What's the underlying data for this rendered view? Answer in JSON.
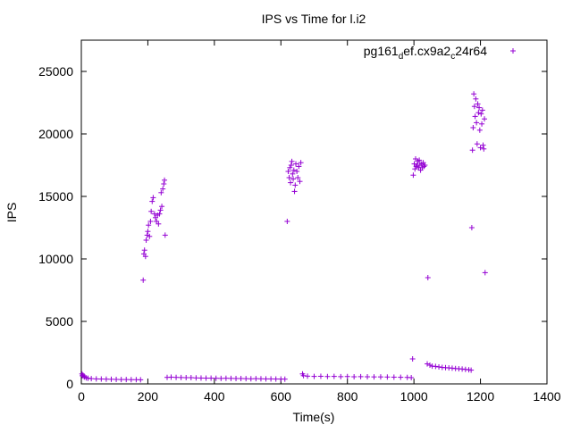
{
  "chart_data": {
    "type": "scatter",
    "title": "IPS vs Time for l.i2",
    "xlabel": "Time(s)",
    "ylabel": "IPS",
    "xlim": [
      0,
      1400
    ],
    "ylim": [
      0,
      27500
    ],
    "x_ticks": [
      0,
      200,
      400,
      600,
      800,
      1000,
      1200,
      1400
    ],
    "y_ticks": [
      0,
      5000,
      10000,
      15000,
      20000,
      25000
    ],
    "x_tick_labels": [
      "0",
      "200",
      "400",
      "600",
      "800",
      "1000",
      "1200",
      "1400"
    ],
    "y_tick_labels": [
      "0",
      "5000",
      "10000",
      "15000",
      "20000",
      "25000"
    ],
    "grid": false,
    "legend_position": "top-right",
    "marker": "+",
    "series": [
      {
        "name": "pg161_def.cx9a2_c24r64",
        "legend_parts": [
          "pg161",
          "d",
          "ef.cx9a2",
          "c",
          "24r64"
        ],
        "color": "#9400d3",
        "points": [
          [
            2,
            800
          ],
          [
            3,
            650
          ],
          [
            5,
            700
          ],
          [
            8,
            600
          ],
          [
            10,
            550
          ],
          [
            15,
            480
          ],
          [
            20,
            450
          ],
          [
            30,
            420
          ],
          [
            45,
            400
          ],
          [
            60,
            390
          ],
          [
            75,
            380
          ],
          [
            90,
            370
          ],
          [
            105,
            360
          ],
          [
            120,
            350
          ],
          [
            135,
            350
          ],
          [
            150,
            340
          ],
          [
            165,
            340
          ],
          [
            178,
            330
          ],
          [
            186,
            8300
          ],
          [
            188,
            10400
          ],
          [
            190,
            10700
          ],
          [
            193,
            10200
          ],
          [
            195,
            11500
          ],
          [
            198,
            11900
          ],
          [
            200,
            12200
          ],
          [
            202,
            12700
          ],
          [
            205,
            11800
          ],
          [
            208,
            13000
          ],
          [
            210,
            13800
          ],
          [
            213,
            14600
          ],
          [
            216,
            14900
          ],
          [
            220,
            13600
          ],
          [
            223,
            13300
          ],
          [
            226,
            13000
          ],
          [
            229,
            13500
          ],
          [
            232,
            12800
          ],
          [
            235,
            13600
          ],
          [
            238,
            13900
          ],
          [
            240,
            15300
          ],
          [
            242,
            14200
          ],
          [
            245,
            15600
          ],
          [
            248,
            16000
          ],
          [
            250,
            16300
          ],
          [
            252,
            11900
          ],
          [
            258,
            520
          ],
          [
            270,
            540
          ],
          [
            285,
            520
          ],
          [
            300,
            510
          ],
          [
            315,
            500
          ],
          [
            330,
            500
          ],
          [
            345,
            480
          ],
          [
            360,
            470
          ],
          [
            375,
            460
          ],
          [
            390,
            460
          ],
          [
            405,
            450
          ],
          [
            420,
            440
          ],
          [
            435,
            450
          ],
          [
            450,
            440
          ],
          [
            465,
            430
          ],
          [
            480,
            430
          ],
          [
            495,
            420
          ],
          [
            510,
            410
          ],
          [
            525,
            420
          ],
          [
            540,
            410
          ],
          [
            555,
            400
          ],
          [
            570,
            400
          ],
          [
            585,
            390
          ],
          [
            600,
            390
          ],
          [
            612,
            380
          ],
          [
            619,
            13000
          ],
          [
            622,
            17000
          ],
          [
            625,
            16500
          ],
          [
            627,
            17300
          ],
          [
            629,
            16100
          ],
          [
            631,
            17500
          ],
          [
            633,
            17800
          ],
          [
            635,
            16800
          ],
          [
            637,
            16400
          ],
          [
            639,
            17100
          ],
          [
            641,
            15400
          ],
          [
            643,
            15900
          ],
          [
            645,
            17600
          ],
          [
            648,
            17000
          ],
          [
            651,
            16500
          ],
          [
            654,
            17400
          ],
          [
            657,
            16200
          ],
          [
            660,
            17700
          ],
          [
            665,
            800
          ],
          [
            668,
            660
          ],
          [
            680,
            620
          ],
          [
            700,
            600
          ],
          [
            720,
            610
          ],
          [
            740,
            590
          ],
          [
            760,
            600
          ],
          [
            780,
            580
          ],
          [
            800,
            590
          ],
          [
            820,
            570
          ],
          [
            840,
            580
          ],
          [
            860,
            570
          ],
          [
            880,
            560
          ],
          [
            900,
            560
          ],
          [
            920,
            550
          ],
          [
            940,
            540
          ],
          [
            960,
            530
          ],
          [
            980,
            520
          ],
          [
            992,
            500
          ],
          [
            996,
            2000
          ],
          [
            998,
            16700
          ],
          [
            1001,
            17600
          ],
          [
            1003,
            17200
          ],
          [
            1005,
            18000
          ],
          [
            1007,
            17400
          ],
          [
            1010,
            17500
          ],
          [
            1012,
            17800
          ],
          [
            1014,
            17300
          ],
          [
            1016,
            17900
          ],
          [
            1018,
            17500
          ],
          [
            1020,
            17100
          ],
          [
            1023,
            17600
          ],
          [
            1025,
            17300
          ],
          [
            1028,
            17700
          ],
          [
            1030,
            17400
          ],
          [
            1033,
            17500
          ],
          [
            1042,
            8500
          ],
          [
            1040,
            1600
          ],
          [
            1048,
            1500
          ],
          [
            1055,
            1420
          ],
          [
            1065,
            1400
          ],
          [
            1075,
            1360
          ],
          [
            1085,
            1320
          ],
          [
            1095,
            1300
          ],
          [
            1105,
            1280
          ],
          [
            1115,
            1260
          ],
          [
            1125,
            1230
          ],
          [
            1135,
            1210
          ],
          [
            1145,
            1190
          ],
          [
            1155,
            1160
          ],
          [
            1165,
            1130
          ],
          [
            1172,
            1100
          ],
          [
            1174,
            12500
          ],
          [
            1176,
            18700
          ],
          [
            1178,
            20500
          ],
          [
            1180,
            23200
          ],
          [
            1182,
            22200
          ],
          [
            1184,
            21400
          ],
          [
            1186,
            22800
          ],
          [
            1188,
            20900
          ],
          [
            1190,
            19200
          ],
          [
            1192,
            22400
          ],
          [
            1194,
            21700
          ],
          [
            1196,
            22100
          ],
          [
            1198,
            20300
          ],
          [
            1200,
            18900
          ],
          [
            1202,
            21600
          ],
          [
            1204,
            20800
          ],
          [
            1206,
            21900
          ],
          [
            1208,
            19100
          ],
          [
            1210,
            18800
          ],
          [
            1212,
            21200
          ],
          [
            1214,
            8900
          ]
        ]
      }
    ]
  }
}
